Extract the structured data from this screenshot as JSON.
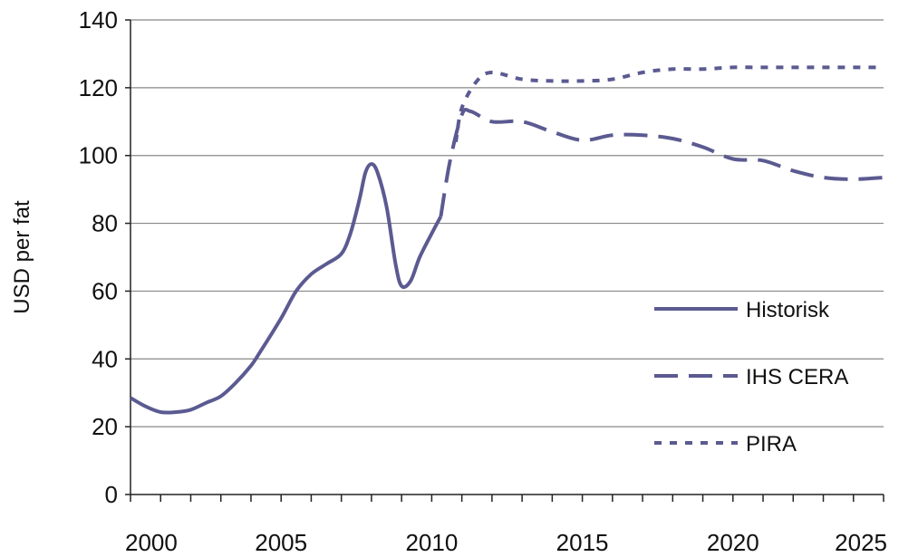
{
  "chart_data": {
    "type": "line",
    "title": "",
    "xlabel": "",
    "ylabel": "USD per fat",
    "xlim": [
      2000,
      2025
    ],
    "ylim": [
      0,
      140
    ],
    "xticks": [
      "2000",
      "2005",
      "2010",
      "2015",
      "2020",
      "2025"
    ],
    "yticks": [
      "0",
      "20",
      "40",
      "60",
      "80",
      "100",
      "120",
      "140"
    ],
    "grid": "horizontal",
    "legend_position": "right",
    "colors": {
      "line": "#5b5a91",
      "grid": "#888888",
      "axis": "#222222"
    },
    "series": [
      {
        "name": "Historisk",
        "style": "solid",
        "x": [
          2000,
          2000.5,
          2001,
          2001.5,
          2002,
          2002.5,
          2003,
          2003.5,
          2004,
          2004.3,
          2005,
          2005.5,
          2006,
          2006.5,
          2007,
          2007.3,
          2007.6,
          2007.8,
          2008,
          2008.2,
          2008.5,
          2008.8,
          2009,
          2009.3,
          2009.6,
          2010,
          2010.3
        ],
        "y": [
          28.5,
          26,
          24.3,
          24.3,
          25,
          27,
          29,
          33,
          38,
          42,
          52,
          60,
          65,
          68,
          71,
          77,
          87,
          95,
          97.5,
          95,
          85,
          68,
          61.5,
          63,
          70,
          77,
          82
        ]
      },
      {
        "name": "IHS CERA",
        "style": "dashed",
        "x": [
          2010.3,
          2010.6,
          2011,
          2011.3,
          2012,
          2013,
          2014,
          2015,
          2016,
          2017,
          2018,
          2019,
          2020,
          2021,
          2022,
          2023,
          2024,
          2025
        ],
        "y": [
          82,
          98,
          112,
          113,
          110,
          110,
          107,
          104.5,
          106,
          106,
          105,
          102.5,
          99,
          98.5,
          95.5,
          93.5,
          93,
          93.5
        ]
      },
      {
        "name": "PIRA",
        "style": "dotted",
        "x": [
          2010.8,
          2011,
          2011.5,
          2012,
          2013,
          2014,
          2015,
          2016,
          2017,
          2018,
          2019,
          2020,
          2021,
          2022,
          2023,
          2024,
          2025
        ],
        "y": [
          104,
          114,
          122,
          124.5,
          122.5,
          122,
          122,
          122.5,
          124.5,
          125.5,
          125.5,
          126,
          126,
          126,
          126,
          126,
          126
        ]
      }
    ]
  }
}
